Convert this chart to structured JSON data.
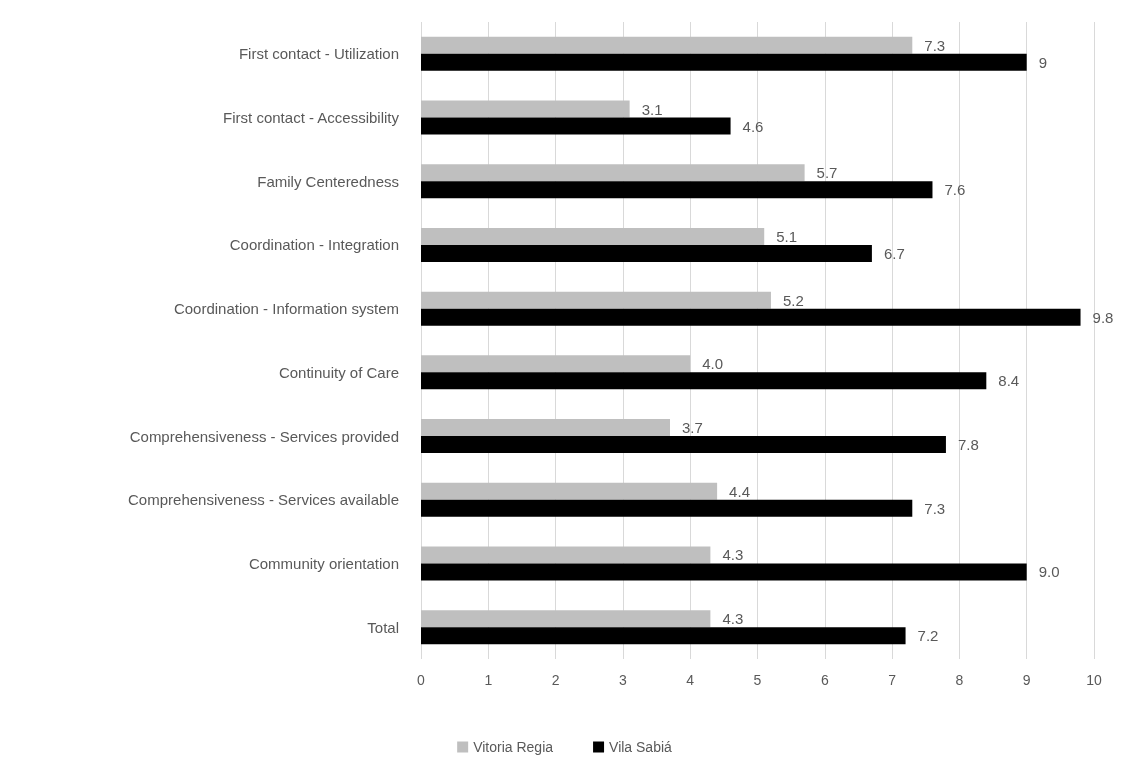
{
  "chart_data": {
    "type": "bar",
    "orientation": "horizontal",
    "categories": [
      "First contact - Utilization",
      "First contact - Accessibility",
      "Family Centeredness",
      "Coordination - Integration",
      "Coordination - Information system",
      "Continuity of Care",
      "Comprehensiveness - Services provided",
      "Comprehensiveness - Services available",
      "Community orientation",
      "Total"
    ],
    "series": [
      {
        "name": "Vitoria Regia",
        "color": "#bfbfbf",
        "values": [
          7.3,
          3.1,
          5.7,
          5.1,
          5.2,
          4.0,
          3.7,
          4.4,
          4.3,
          4.3
        ],
        "value_labels": [
          "7.3",
          "3.1",
          "5.7",
          "5.1",
          "5.2",
          "4.0",
          "3.7",
          "4.4",
          "4.3",
          "4.3"
        ]
      },
      {
        "name": "Vila Sabiá",
        "color": "#000000",
        "values": [
          9,
          4.6,
          7.6,
          6.7,
          9.8,
          8.4,
          7.8,
          7.3,
          9.0,
          7.2
        ],
        "value_labels": [
          "9",
          "4.6",
          "7.6",
          "6.7",
          "9.8",
          "8.4",
          "7.8",
          "7.3",
          "9.0",
          "7.2"
        ]
      }
    ],
    "xlim": [
      0,
      10
    ],
    "xticks": [
      0,
      1,
      2,
      3,
      4,
      5,
      6,
      7,
      8,
      9,
      10
    ],
    "grid": "x",
    "legend": "bottom"
  }
}
